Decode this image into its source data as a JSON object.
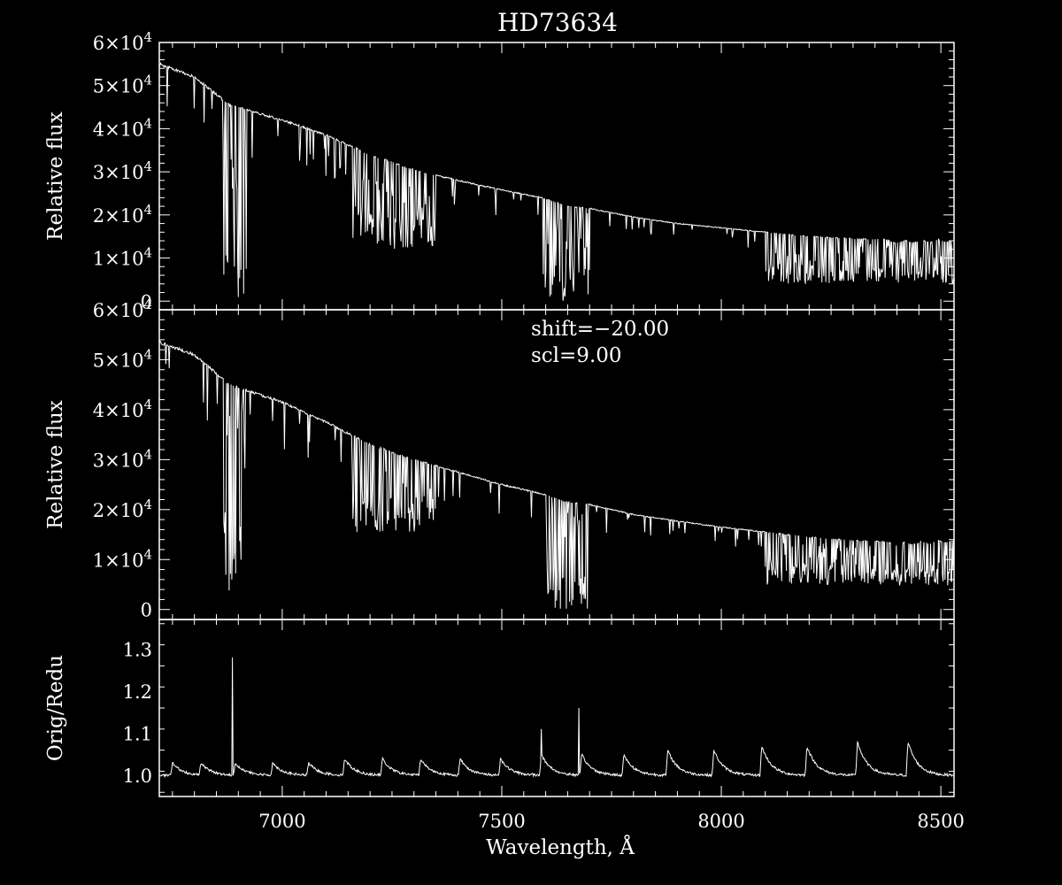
{
  "chart_data": [
    {
      "type": "line",
      "panel": "top",
      "title": "HD73634",
      "xlabel": "",
      "ylabel": "Relative flux",
      "xlim": [
        6720,
        8530
      ],
      "ylim": [
        -2000,
        60000
      ],
      "yticks": [
        0,
        10000,
        20000,
        30000,
        40000,
        50000,
        60000
      ],
      "ytick_labels": [
        {
          "mant": "0",
          "exp": ""
        },
        {
          "mant": "1×10",
          "exp": "4"
        },
        {
          "mant": "2×10",
          "exp": "4"
        },
        {
          "mant": "3×10",
          "exp": "4"
        },
        {
          "mant": "4×10",
          "exp": "4"
        },
        {
          "mant": "5×10",
          "exp": "4"
        },
        {
          "mant": "6×10",
          "exp": "4"
        }
      ],
      "continuum": [
        [
          6720,
          55000
        ],
        [
          6800,
          52000
        ],
        [
          6880,
          45500
        ],
        [
          7000,
          42000
        ],
        [
          7100,
          38500
        ],
        [
          7200,
          34000
        ],
        [
          7300,
          30500
        ],
        [
          7400,
          28000
        ],
        [
          7500,
          25800
        ],
        [
          7590,
          24000
        ],
        [
          7650,
          22000
        ],
        [
          7700,
          21500
        ],
        [
          7800,
          19500
        ],
        [
          7900,
          18000
        ],
        [
          8000,
          17000
        ],
        [
          8100,
          16000
        ],
        [
          8200,
          15000
        ],
        [
          8300,
          14500
        ],
        [
          8400,
          14200
        ],
        [
          8530,
          14500
        ]
      ],
      "absorption_bands": [
        {
          "range": [
            6865,
            6920
          ],
          "min_value": 500
        },
        {
          "range": [
            7160,
            7350
          ],
          "min_value": 12000
        },
        {
          "range": [
            7594,
            7700
          ],
          "min_value": 0
        },
        {
          "range": [
            8100,
            8530
          ],
          "min_value": 4000
        }
      ]
    },
    {
      "type": "line",
      "panel": "middle",
      "xlabel": "",
      "ylabel": "Relative flux",
      "xlim": [
        6720,
        8530
      ],
      "ylim": [
        -2000,
        60000
      ],
      "yticks": [
        0,
        10000,
        20000,
        30000,
        40000,
        50000,
        60000
      ],
      "ytick_labels": [
        {
          "mant": "0",
          "exp": ""
        },
        {
          "mant": "1×10",
          "exp": "4"
        },
        {
          "mant": "2×10",
          "exp": "4"
        },
        {
          "mant": "3×10",
          "exp": "4"
        },
        {
          "mant": "4×10",
          "exp": "4"
        },
        {
          "mant": "5×10",
          "exp": "4"
        },
        {
          "mant": "6×10",
          "exp": "4"
        }
      ],
      "annotations": [
        "shift=−20.00",
        "scl=9.00"
      ],
      "continuum": [
        [
          6720,
          53500
        ],
        [
          6800,
          51000
        ],
        [
          6880,
          45000
        ],
        [
          7000,
          41500
        ],
        [
          7100,
          37500
        ],
        [
          7200,
          33000
        ],
        [
          7300,
          30000
        ],
        [
          7400,
          27500
        ],
        [
          7500,
          25000
        ],
        [
          7590,
          23200
        ],
        [
          7650,
          21500
        ],
        [
          7700,
          21000
        ],
        [
          7800,
          19000
        ],
        [
          7900,
          17700
        ],
        [
          8000,
          16500
        ],
        [
          8100,
          15500
        ],
        [
          8200,
          14500
        ],
        [
          8300,
          13800
        ],
        [
          8400,
          13500
        ],
        [
          8530,
          14200
        ]
      ],
      "absorption_bands": [
        {
          "range": [
            6865,
            6920
          ],
          "min_value": 2000
        },
        {
          "range": [
            7160,
            7350
          ],
          "min_value": 15000
        },
        {
          "range": [
            7594,
            7700
          ],
          "min_value": 0
        },
        {
          "range": [
            8100,
            8530
          ],
          "min_value": 5000
        }
      ]
    },
    {
      "type": "line",
      "panel": "bottom",
      "xlabel": "Wavelength, Å",
      "ylabel": "Orig/Redu",
      "xlim": [
        6720,
        8530
      ],
      "ylim": [
        0.95,
        1.37
      ],
      "yticks": [
        1.0,
        1.1,
        1.2,
        1.3
      ],
      "ytick_labels": [
        "1.0",
        "1.1",
        "1.2",
        "1.3"
      ],
      "xticks": [
        7000,
        7500,
        8000,
        8500
      ],
      "xtick_labels": [
        "7000",
        "7500",
        "8000",
        "8500"
      ],
      "baseline": 1.0,
      "periodic_peaks": [
        6750,
        6815,
        6893,
        6978,
        7060,
        7142,
        7228,
        7315,
        7405,
        7497,
        7590,
        7682,
        7778,
        7878,
        7983,
        8092,
        8195,
        8310,
        8425
      ],
      "peak_heights": [
        0.03,
        0.03,
        0.03,
        0.03,
        0.03,
        0.04,
        0.04,
        0.04,
        0.04,
        0.04,
        0.05,
        0.05,
        0.05,
        0.06,
        0.06,
        0.07,
        0.07,
        0.08,
        0.08
      ],
      "spikes": [
        {
          "x": 6886,
          "y": 1.28
        },
        {
          "x": 7590,
          "y": 1.11
        },
        {
          "x": 7675,
          "y": 1.16
        }
      ]
    }
  ]
}
